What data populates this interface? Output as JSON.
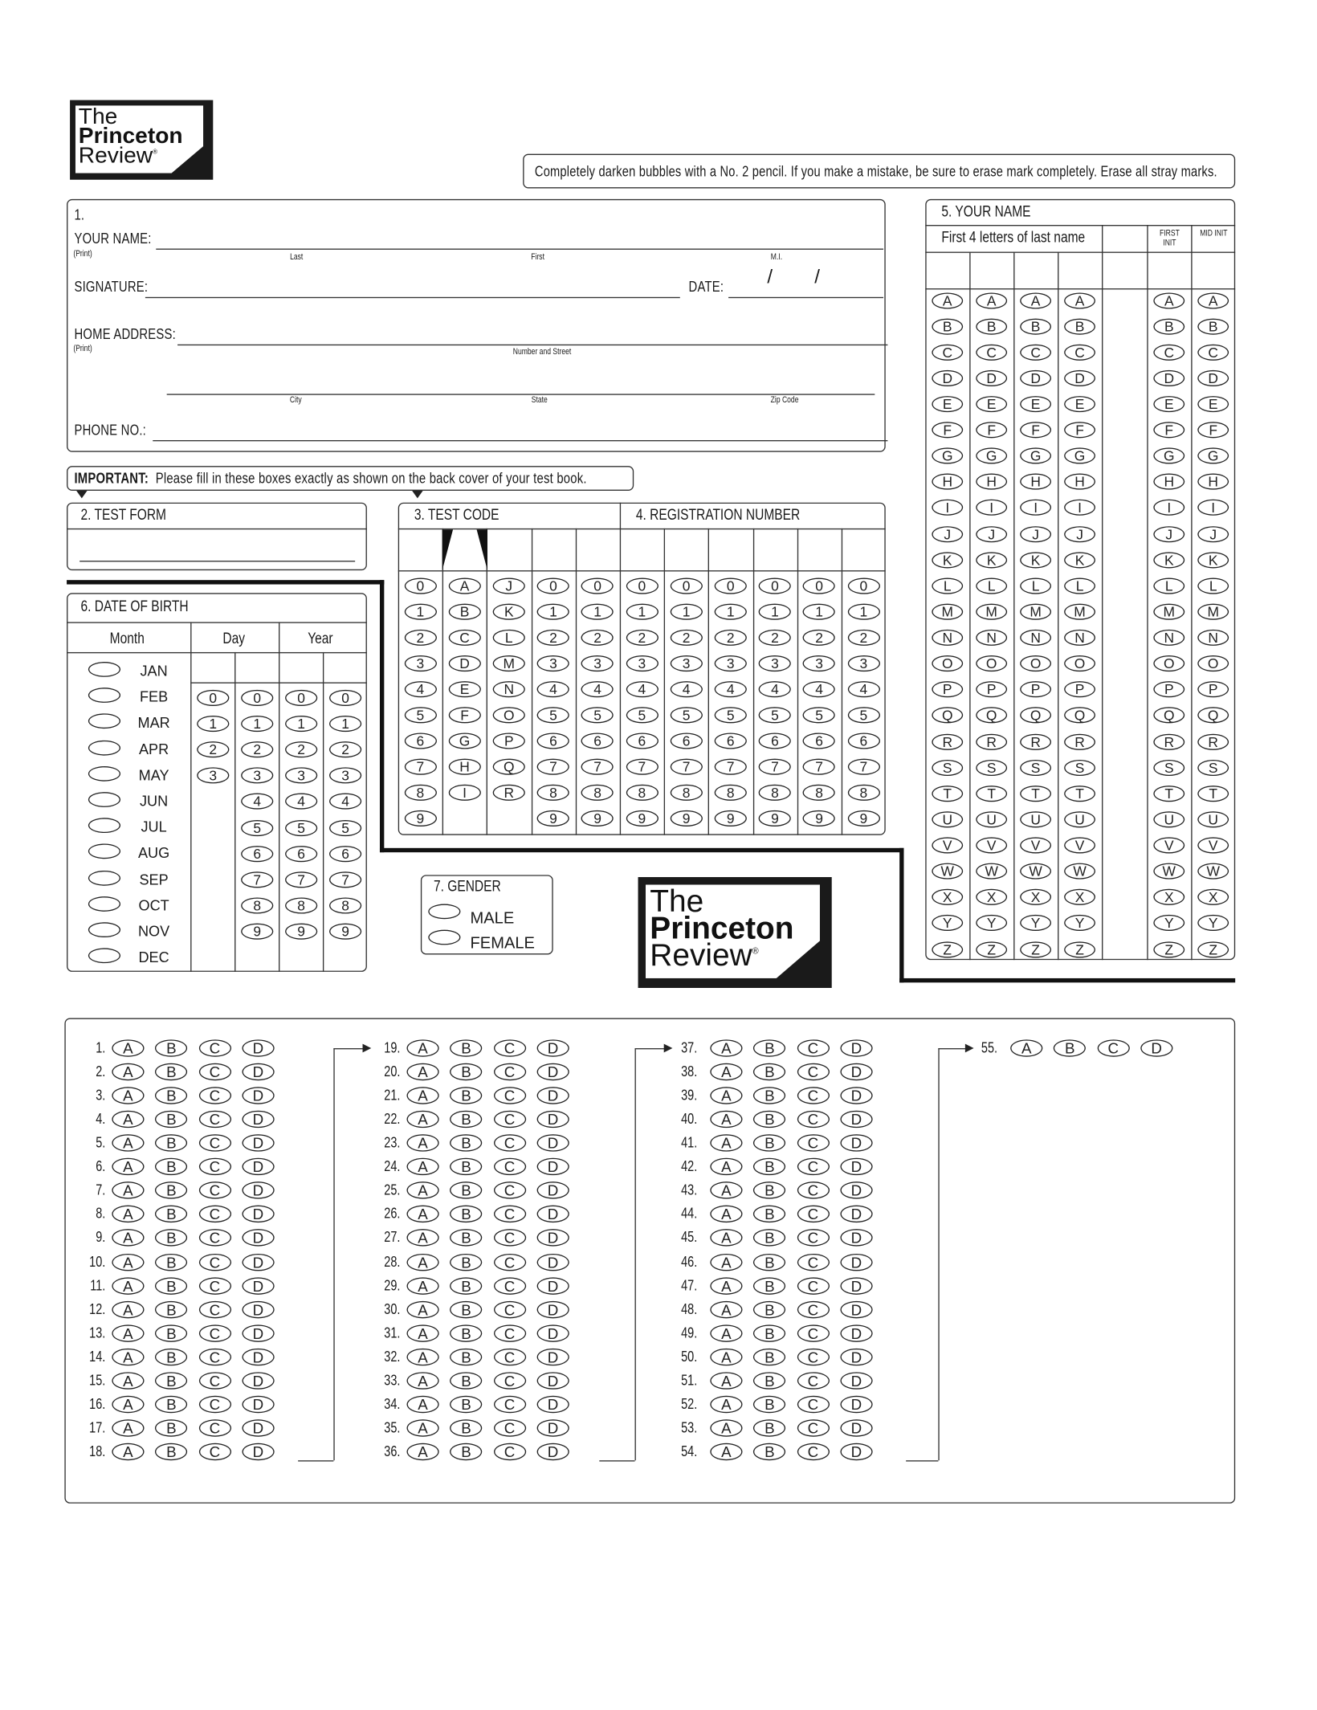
{
  "logo": {
    "line1": "The",
    "line2": "Princeton",
    "line3": "Review",
    "reg": "®"
  },
  "instructions": "Completely darken bubbles with a No. 2 pencil.  If you make a mistake, be sure to erase mark completely.  Erase all stray marks.",
  "section1": {
    "number": "1.",
    "your_name": "YOUR NAME:",
    "print": "(Print)",
    "last": "Last",
    "first": "First",
    "mi": "M.I.",
    "signature": "SIGNATURE:",
    "date": "DATE:",
    "date_sep": "/",
    "home_address": "HOME ADDRESS:",
    "number_street": "Number and Street",
    "city": "City",
    "state": "State",
    "zip": "Zip Code",
    "phone": "PHONE NO.:"
  },
  "important": {
    "bold": "IMPORTANT:",
    "text": "Please fill in these boxes exactly as shown on the back cover of your test book."
  },
  "test_form": {
    "title": "2.  TEST FORM"
  },
  "test_code": {
    "title": "3.  TEST CODE",
    "columns": [
      [
        "0",
        "1",
        "2",
        "3",
        "4",
        "5",
        "6",
        "7",
        "8",
        "9"
      ],
      [
        "A",
        "B",
        "C",
        "D",
        "E",
        "F",
        "G",
        "H",
        "I"
      ],
      [
        "J",
        "K",
        "L",
        "M",
        "N",
        "O",
        "P",
        "Q",
        "R"
      ],
      [
        "0",
        "1",
        "2",
        "3",
        "4",
        "5",
        "6",
        "7",
        "8",
        "9"
      ],
      [
        "0",
        "1",
        "2",
        "3",
        "4",
        "5",
        "6",
        "7",
        "8",
        "9"
      ]
    ]
  },
  "registration": {
    "title": "4.  REGISTRATION NUMBER",
    "columns": [
      [
        "0",
        "1",
        "2",
        "3",
        "4",
        "5",
        "6",
        "7",
        "8",
        "9"
      ],
      [
        "0",
        "1",
        "2",
        "3",
        "4",
        "5",
        "6",
        "7",
        "8",
        "9"
      ],
      [
        "0",
        "1",
        "2",
        "3",
        "4",
        "5",
        "6",
        "7",
        "8",
        "9"
      ],
      [
        "0",
        "1",
        "2",
        "3",
        "4",
        "5",
        "6",
        "7",
        "8",
        "9"
      ],
      [
        "0",
        "1",
        "2",
        "3",
        "4",
        "5",
        "6",
        "7",
        "8",
        "9"
      ],
      [
        "0",
        "1",
        "2",
        "3",
        "4",
        "5",
        "6",
        "7",
        "8",
        "9"
      ]
    ]
  },
  "your_name": {
    "title": "5.  YOUR NAME",
    "last_name_label": "First 4 letters of last name",
    "first_init": "FIRST INIT",
    "mid_init": "MID INIT",
    "letters": [
      "A",
      "B",
      "C",
      "D",
      "E",
      "F",
      "G",
      "H",
      "I",
      "J",
      "K",
      "L",
      "M",
      "N",
      "O",
      "P",
      "Q",
      "R",
      "S",
      "T",
      "U",
      "V",
      "W",
      "X",
      "Y",
      "Z"
    ]
  },
  "date_of_birth": {
    "title": "6.  DATE OF BIRTH",
    "month": "Month",
    "day": "Day",
    "year": "Year",
    "months": [
      "JAN",
      "FEB",
      "MAR",
      "APR",
      "MAY",
      "JUN",
      "JUL",
      "AUG",
      "SEP",
      "OCT",
      "NOV",
      "DEC"
    ],
    "day_columns": [
      [
        "0",
        "1",
        "2",
        "3"
      ],
      [
        "0",
        "1",
        "2",
        "3",
        "4",
        "5",
        "6",
        "7",
        "8",
        "9"
      ]
    ],
    "year_columns": [
      [
        "0",
        "1",
        "2",
        "3",
        "4",
        "5",
        "6",
        "7",
        "8",
        "9"
      ],
      [
        "0",
        "1",
        "2",
        "3",
        "4",
        "5",
        "6",
        "7",
        "8",
        "9"
      ]
    ]
  },
  "gender": {
    "title": "7. GENDER",
    "options": [
      "MALE",
      "FEMALE"
    ]
  },
  "answers": {
    "choices": [
      "A",
      "B",
      "C",
      "D"
    ],
    "columns": [
      {
        "start": 1,
        "end": 18
      },
      {
        "start": 19,
        "end": 36
      },
      {
        "start": 37,
        "end": 54
      },
      {
        "start": 55,
        "end": 55
      }
    ]
  }
}
